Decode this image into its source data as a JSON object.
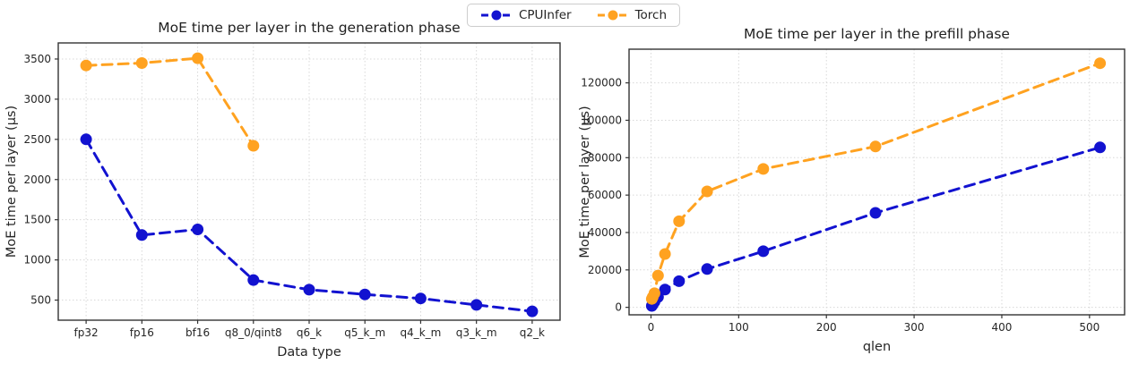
{
  "figure": {
    "legend": {
      "items": [
        {
          "label": "CPUInfer",
          "color": "#1212d0"
        },
        {
          "label": "Torch",
          "color": "#ffa220"
        }
      ]
    }
  },
  "chart_data": [
    {
      "type": "line",
      "title": "MoE time per layer in the generation phase",
      "xlabel": "Data type",
      "ylabel": "MoE time per layer (μs)",
      "categories": [
        "fp32",
        "fp16",
        "bf16",
        "q8_0/qint8",
        "q6_k",
        "q5_k_m",
        "q4_k_m",
        "q3_k_m",
        "q2_k"
      ],
      "series": [
        {
          "name": "CPUInfer",
          "color": "#1212d0",
          "values": [
            2500,
            1310,
            1380,
            750,
            630,
            570,
            520,
            440,
            360
          ]
        },
        {
          "name": "Torch",
          "color": "#ffa220",
          "values": [
            3420,
            3450,
            3510,
            2420
          ]
        }
      ],
      "yticks": [
        500,
        1000,
        1500,
        2000,
        2500,
        3000,
        3500
      ],
      "ylim": [
        250,
        3700
      ],
      "grid": true,
      "line_style": "dashed",
      "legend_position": "figure-top-center"
    },
    {
      "type": "line",
      "title": "MoE time per layer in the prefill phase",
      "xlabel": "qlen",
      "ylabel": "MoE time per layer (μs)",
      "x": [
        1,
        2,
        4,
        8,
        16,
        32,
        64,
        128,
        256,
        512
      ],
      "series": [
        {
          "name": "CPUInfer",
          "color": "#1212d0",
          "values": [
            800,
            1500,
            3000,
            5500,
            9500,
            14000,
            20500,
            30000,
            50500,
            85500
          ]
        },
        {
          "name": "Torch",
          "color": "#ffa220",
          "values": [
            4500,
            5500,
            7500,
            17000,
            28500,
            46000,
            62000,
            74000,
            86000,
            130500
          ]
        }
      ],
      "xticks": [
        0,
        100,
        200,
        300,
        400,
        500
      ],
      "yticks": [
        0,
        20000,
        40000,
        60000,
        80000,
        100000,
        120000
      ],
      "xlim": [
        -25,
        540
      ],
      "ylim": [
        -4000,
        138000
      ],
      "grid": true,
      "line_style": "dashed",
      "legend_position": "figure-top-center"
    }
  ]
}
